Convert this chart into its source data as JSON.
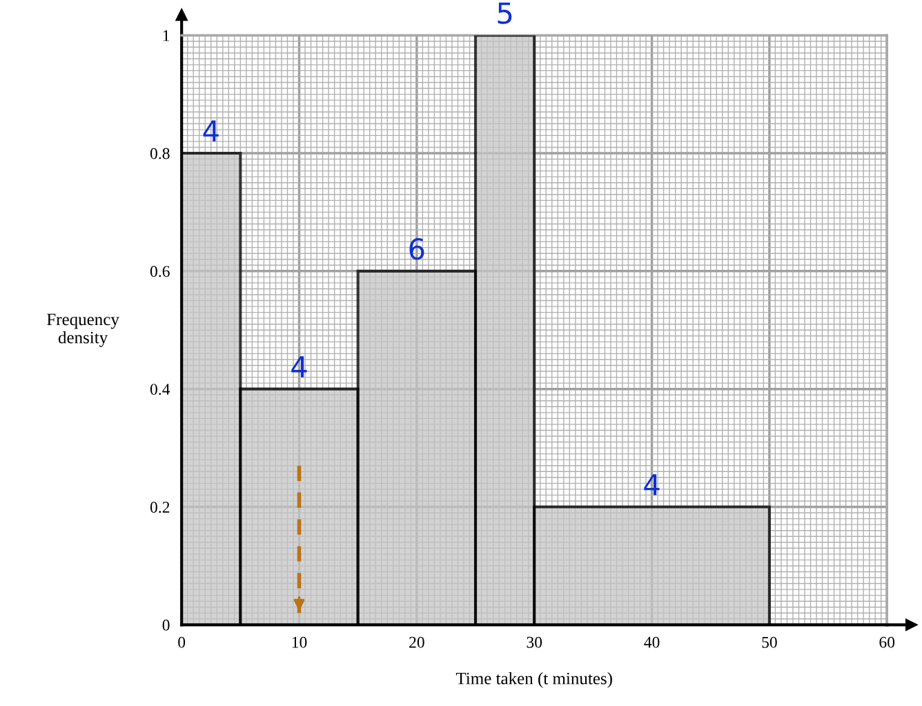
{
  "chart_data": {
    "type": "histogram",
    "bins": [
      0,
      5,
      15,
      25,
      30,
      50
    ],
    "values": [
      0.8,
      0.4,
      0.6,
      1,
      0.2
    ],
    "color": "#c4c4c4",
    "series": [
      {
        "type": "line",
        "x": [
          10,
          10
        ],
        "values": [
          0.27,
          0.02
        ],
        "color": "#b8741a",
        "line_style": "dashed"
      }
    ],
    "xlabel": "Time taken (t minutes)",
    "ylabel": "Frequency\ndensity",
    "xlim": [
      0,
      60
    ],
    "xticks": [
      0,
      10,
      20,
      30,
      40,
      50,
      60
    ],
    "ylim": [
      0,
      1
    ],
    "yticks": [
      0,
      0.2,
      0.4,
      0.6,
      0.8,
      1
    ],
    "grid": true,
    "annotations": [
      {
        "text": "4",
        "x": 2.5,
        "y": 0.8
      },
      {
        "text": "4",
        "x": 10,
        "y": 0.4
      },
      {
        "text": "6",
        "x": 20,
        "y": 0.6
      },
      {
        "text": "5",
        "x": 27.5,
        "y": 1
      },
      {
        "text": "4",
        "x": 40,
        "y": 0.2
      }
    ]
  }
}
